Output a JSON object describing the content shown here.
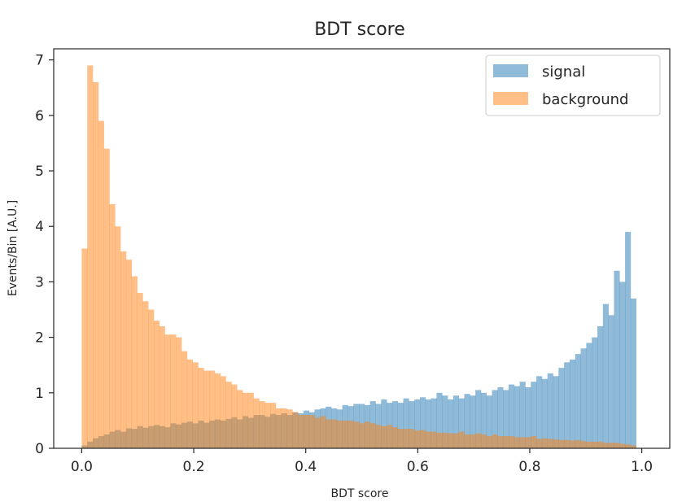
{
  "chart_data": {
    "type": "bar",
    "histogram": true,
    "title": "BDT score",
    "xlabel": "BDT score",
    "ylabel": "Events/Bin [A.U.]",
    "xlim": [
      -0.05,
      1.05
    ],
    "ylim": [
      0,
      7.2
    ],
    "x_ticks": [
      "0.0",
      "0.2",
      "0.4",
      "0.6",
      "0.8",
      "1.0"
    ],
    "y_ticks": [
      "0",
      "1",
      "2",
      "3",
      "4",
      "5",
      "6",
      "7"
    ],
    "bin_range": [
      0.0,
      0.99
    ],
    "grid": false,
    "legend_position": "top-right",
    "series": [
      {
        "name": "signal",
        "color": "#1f77b4",
        "alpha": 0.5,
        "values": [
          0.05,
          0.12,
          0.18,
          0.22,
          0.25,
          0.3,
          0.33,
          0.3,
          0.36,
          0.35,
          0.4,
          0.37,
          0.4,
          0.42,
          0.4,
          0.38,
          0.45,
          0.43,
          0.46,
          0.48,
          0.45,
          0.5,
          0.46,
          0.5,
          0.52,
          0.5,
          0.53,
          0.56,
          0.52,
          0.58,
          0.55,
          0.6,
          0.6,
          0.57,
          0.62,
          0.6,
          0.63,
          0.6,
          0.65,
          0.63,
          0.68,
          0.65,
          0.7,
          0.72,
          0.75,
          0.72,
          0.7,
          0.78,
          0.76,
          0.8,
          0.8,
          0.78,
          0.85,
          0.8,
          0.88,
          0.82,
          0.85,
          0.82,
          0.9,
          0.85,
          0.88,
          0.92,
          0.88,
          0.9,
          1.0,
          0.95,
          0.88,
          0.95,
          0.9,
          0.98,
          0.95,
          1.05,
          1.0,
          0.95,
          1.05,
          1.1,
          1.05,
          1.15,
          1.12,
          1.2,
          1.1,
          1.2,
          1.3,
          1.25,
          1.35,
          1.3,
          1.45,
          1.55,
          1.6,
          1.7,
          1.8,
          1.9,
          2.0,
          2.2,
          2.6,
          2.4,
          3.2,
          3.0,
          3.9,
          2.7
        ]
      },
      {
        "name": "background",
        "color": "#ff7f0e",
        "alpha": 0.5,
        "values": [
          3.6,
          6.9,
          6.6,
          5.9,
          5.4,
          4.4,
          4.0,
          3.55,
          3.4,
          3.1,
          2.8,
          2.65,
          2.5,
          2.3,
          2.2,
          2.05,
          2.05,
          2.0,
          1.75,
          1.6,
          1.55,
          1.45,
          1.4,
          1.4,
          1.35,
          1.3,
          1.2,
          1.15,
          1.05,
          1.0,
          1.0,
          0.9,
          0.85,
          0.82,
          0.82,
          0.72,
          0.72,
          0.7,
          0.65,
          0.6,
          0.6,
          0.6,
          0.55,
          0.58,
          0.52,
          0.52,
          0.5,
          0.5,
          0.5,
          0.48,
          0.45,
          0.48,
          0.45,
          0.42,
          0.4,
          0.42,
          0.38,
          0.35,
          0.35,
          0.35,
          0.32,
          0.33,
          0.3,
          0.3,
          0.28,
          0.28,
          0.27,
          0.27,
          0.3,
          0.25,
          0.25,
          0.27,
          0.25,
          0.22,
          0.25,
          0.22,
          0.22,
          0.22,
          0.2,
          0.2,
          0.2,
          0.22,
          0.17,
          0.18,
          0.17,
          0.16,
          0.15,
          0.15,
          0.14,
          0.15,
          0.13,
          0.12,
          0.12,
          0.12,
          0.1,
          0.1,
          0.1,
          0.08,
          0.07,
          0.05
        ]
      }
    ]
  }
}
